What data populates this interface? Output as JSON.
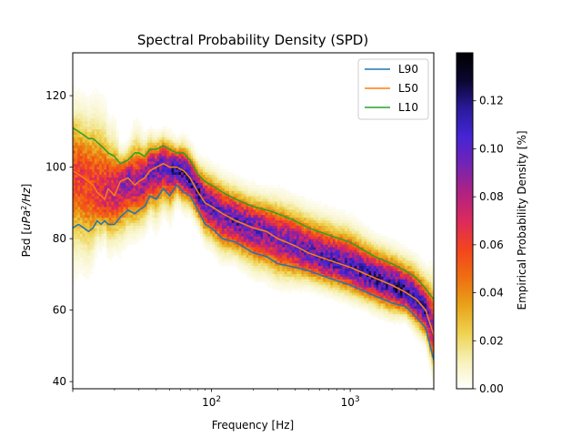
{
  "chart_data": {
    "type": "heatmap",
    "title": "Spectral Probability Density (SPD)",
    "xlabel": "Frequency [Hz]",
    "ylabel_prefix": "Psd [",
    "ylabel_math": "uPa",
    "ylabel_sup": "2",
    "ylabel_suffix": "/Hz",
    "ylabel_close": "]",
    "xscale": "log",
    "xlim": [
      10,
      4000
    ],
    "ylim": [
      38,
      132
    ],
    "x_ticks": [
      {
        "value": 100,
        "base": "10",
        "exp": "2"
      },
      {
        "value": 1000,
        "base": "10",
        "exp": "3"
      }
    ],
    "y_ticks": [
      40,
      60,
      80,
      100,
      120
    ],
    "colorbar": {
      "label": "Empirical Probability Density [%]",
      "range": [
        0,
        0.14
      ],
      "ticks": [
        "0.00",
        "0.02",
        "0.04",
        "0.06",
        "0.08",
        "0.10",
        "0.12"
      ],
      "colormap": [
        "#ffffff",
        "#f6f1b8",
        "#eed250",
        "#e8a219",
        "#ef6d12",
        "#f3441e",
        "#db2a5c",
        "#b02281",
        "#7424b4",
        "#4525d4",
        "#2a1a9c",
        "#0b0630",
        "#000000"
      ]
    },
    "legend_position": "upper right",
    "series": [
      {
        "name": "L90",
        "color": "#1f77b4",
        "x": [
          10,
          11,
          12,
          13,
          14,
          15,
          16,
          17,
          18,
          20,
          22,
          25,
          28,
          30,
          33,
          36,
          40,
          45,
          50,
          56,
          63,
          70,
          80,
          90,
          100,
          120,
          150,
          200,
          250,
          300,
          400,
          500,
          700,
          1000,
          1500,
          2000,
          2500,
          3000,
          3500,
          4000
        ],
        "y": [
          83,
          84,
          83,
          82,
          83,
          85,
          84,
          85,
          84,
          84,
          86,
          88,
          87,
          88,
          89,
          92,
          91,
          94,
          92,
          95,
          93,
          92,
          88,
          84,
          83,
          80,
          79,
          76,
          75,
          73,
          72,
          71,
          69,
          67,
          64,
          62,
          61,
          58,
          55,
          46
        ]
      },
      {
        "name": "L50",
        "color": "#ff7f0e",
        "x": [
          10,
          11,
          12,
          13,
          14,
          15,
          16,
          17,
          18,
          20,
          22,
          25,
          28,
          30,
          33,
          36,
          40,
          45,
          50,
          56,
          63,
          70,
          80,
          90,
          100,
          120,
          150,
          200,
          250,
          300,
          400,
          500,
          700,
          1000,
          1500,
          2000,
          2500,
          3000,
          3500,
          4000
        ],
        "y": [
          99,
          98,
          97,
          96,
          95,
          93,
          92,
          91,
          94,
          92,
          96,
          97,
          95,
          96,
          97,
          99,
          100,
          101,
          100,
          100,
          99,
          97,
          93,
          90,
          89,
          87,
          85,
          83,
          82,
          80,
          78,
          76,
          74,
          72,
          69,
          67,
          65,
          63,
          60,
          53
        ]
      },
      {
        "name": "L10",
        "color": "#2ca02c",
        "x": [
          10,
          11,
          12,
          13,
          14,
          15,
          16,
          17,
          18,
          20,
          22,
          25,
          28,
          30,
          33,
          36,
          40,
          45,
          50,
          56,
          63,
          70,
          80,
          90,
          100,
          120,
          150,
          200,
          250,
          300,
          400,
          500,
          700,
          1000,
          1500,
          2000,
          2500,
          3000,
          3500,
          4000
        ],
        "y": [
          111,
          110,
          109,
          108,
          108,
          107,
          106,
          105,
          104,
          103,
          101,
          102,
          104,
          104,
          103,
          105,
          105,
          106,
          105,
          104,
          104,
          102,
          98,
          96,
          95,
          93,
          91,
          89,
          88,
          87,
          85,
          83,
          81,
          79,
          75,
          73,
          71,
          69,
          66,
          63
        ]
      }
    ]
  }
}
